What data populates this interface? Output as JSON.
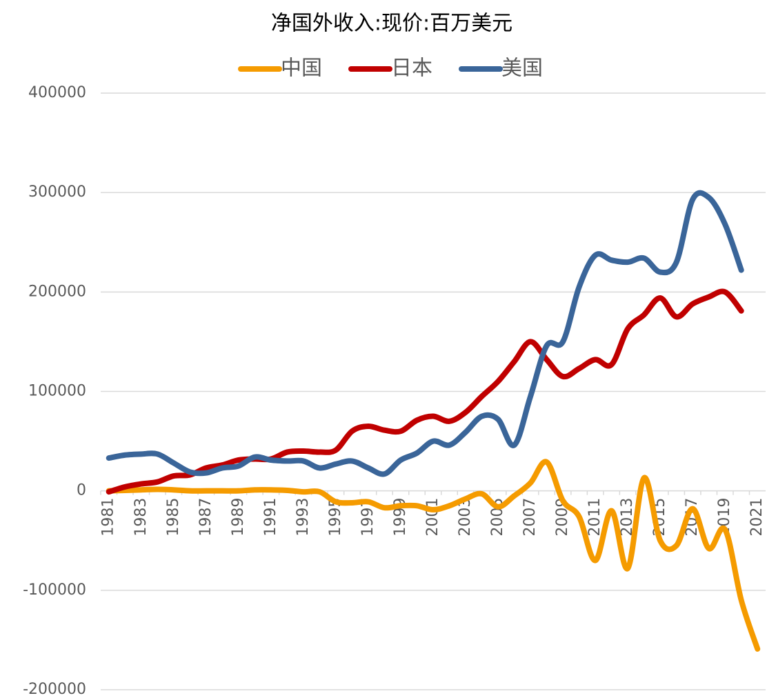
{
  "chart_data": {
    "type": "line",
    "title": "净国外收入:现价:百万美元",
    "categories": [
      "1981",
      null,
      "1983",
      null,
      "1985",
      null,
      "1987",
      null,
      "1989",
      null,
      "1991",
      null,
      "1993",
      null,
      "1995",
      null,
      "1997",
      null,
      "1999",
      null,
      "2001",
      null,
      "2003",
      null,
      "2005",
      null,
      "2007",
      null,
      "2009",
      null,
      "2011",
      null,
      "2013",
      null,
      "2015",
      null,
      "2017",
      null,
      "2019",
      null,
      "2021"
    ],
    "series": [
      {
        "name": "中国",
        "color": "#f59b00",
        "values": [
          0,
          500,
          1000,
          1500,
          1000,
          0,
          0,
          0,
          0,
          1000,
          1000,
          500,
          -1000,
          -1000,
          -11000,
          -12000,
          -11000,
          -17000,
          -15000,
          -15000,
          -19000,
          -15000,
          -8000,
          -3000,
          -16000,
          -5000,
          8000,
          29000,
          -10000,
          -26000,
          -70000,
          -20000,
          -78000,
          13000,
          -50000,
          -55000,
          -18000,
          -58000,
          -39000,
          -110000,
          -159000
        ]
      },
      {
        "name": "日本",
        "color": "#c00000",
        "values": [
          -1000,
          4000,
          7000,
          9000,
          15000,
          16000,
          23000,
          26000,
          31000,
          32000,
          32000,
          39000,
          40000,
          39000,
          41000,
          60000,
          65000,
          61000,
          60000,
          71000,
          75000,
          70000,
          79000,
          95000,
          110000,
          130000,
          150000,
          132000,
          115000,
          123000,
          132000,
          127000,
          163000,
          177000,
          194000,
          175000,
          188000,
          195000,
          200000,
          181000,
          null
        ]
      },
      {
        "name": "美国",
        "color": "#3a6599",
        "values": [
          33000,
          36000,
          37000,
          37000,
          28000,
          19000,
          18000,
          23000,
          25000,
          34000,
          31000,
          30000,
          30000,
          23000,
          27000,
          30000,
          23000,
          17000,
          31000,
          38000,
          50000,
          46000,
          59000,
          75000,
          72000,
          46000,
          95000,
          146000,
          150000,
          205000,
          237000,
          232000,
          230000,
          234000,
          220000,
          230000,
          293000,
          295000,
          268000,
          222000,
          null
        ]
      }
    ],
    "ylim": [
      -200000,
      400000
    ],
    "yticks": [
      -200000,
      -100000,
      0,
      100000,
      200000,
      300000,
      400000
    ],
    "grid": true,
    "legend": "top"
  }
}
